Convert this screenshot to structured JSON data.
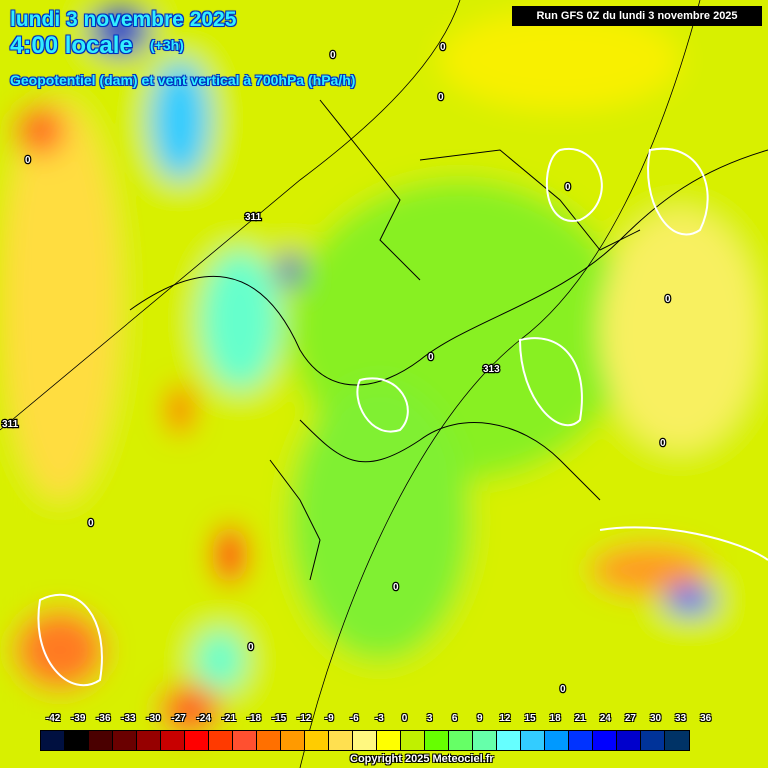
{
  "header": {
    "date": "lundi 3 novembre 2025",
    "time": "4:00 locale",
    "offset": "(+3h)",
    "parameter": "Geopotentiel (dam) et vent vertical à 700hPa (hPa/h)",
    "run": "Run GFS 0Z du lundi 3 novembre 2025"
  },
  "legend": {
    "ticks": [
      "-42",
      "-39",
      "-36",
      "-33",
      "-30",
      "-27",
      "-24",
      "-21",
      "-18",
      "-15",
      "-12",
      "-9",
      "-6",
      "-3",
      "0",
      "3",
      "6",
      "9",
      "12",
      "15",
      "18",
      "21",
      "24",
      "27",
      "30",
      "33",
      "36"
    ],
    "colors": [
      "#001040",
      "#000000",
      "#4a0000",
      "#6a0000",
      "#960000",
      "#c80000",
      "#ff0000",
      "#ff3a00",
      "#ff5030",
      "#ff7000",
      "#ff9a00",
      "#ffcc00",
      "#ffe050",
      "#fff880",
      "#ffff00",
      "#c0f000",
      "#66ff00",
      "#66ff66",
      "#66ffaa",
      "#66ffff",
      "#33ccff",
      "#0099ff",
      "#0033ff",
      "#0000ff",
      "#0000cc",
      "#003399",
      "#003366"
    ]
  },
  "contours": {
    "geopotential_labels": [
      "311",
      "313",
      "311"
    ],
    "vertical_wind_label": "0"
  },
  "copyright": "Copyright 2025 Meteociel.fr"
}
